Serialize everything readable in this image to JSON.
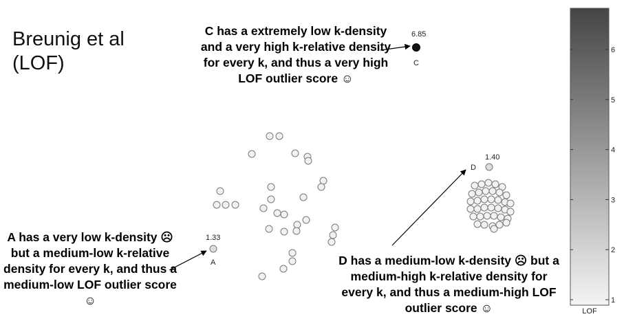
{
  "title": "Breunig et al (LOF)",
  "annotations": {
    "c": "C has a extremely low k-density and a very high k-relative density for every k, and thus a very high LOF outlier score ☺",
    "a": "A has a very low k-density ☹ but a medium-low k-relative density for every k, and thus a medium-low LOF outlier score ☺",
    "d": "D has a medium-low k-density ☹ but a medium-high k-relative density for every k, and thus a medium-high LOF outlier score ☺"
  },
  "points": {
    "c": {
      "label": "C",
      "score": "6.85"
    },
    "a": {
      "label": "A",
      "score": "1.33"
    },
    "d": {
      "label": "D",
      "score": "1.40"
    }
  },
  "colorbar": {
    "label": "LOF",
    "ticks": [
      "1",
      "2",
      "3",
      "4",
      "5",
      "6"
    ],
    "range": [
      1,
      6.85
    ],
    "color_low": "#f4f4f4",
    "color_high": "#454545"
  }
}
